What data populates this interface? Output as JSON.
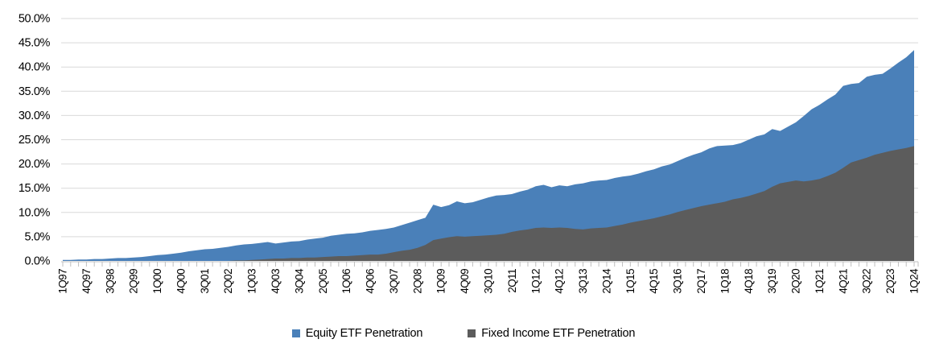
{
  "chart_data": {
    "type": "area",
    "title": "",
    "overlap": true,
    "grid": {
      "horizontal": true,
      "color": "#D9D9D9",
      "axis_color": "#BFBFBF"
    },
    "y_axis": {
      "min": 0,
      "max": 50,
      "step": 5,
      "tick_labels": [
        "0.0%",
        "5.0%",
        "10.0%",
        "15.0%",
        "20.0%",
        "25.0%",
        "30.0%",
        "35.0%",
        "40.0%",
        "45.0%",
        "50.0%"
      ]
    },
    "x_tick_label_step": 3,
    "categories": [
      "1Q97",
      "2Q97",
      "3Q97",
      "4Q97",
      "1Q98",
      "2Q98",
      "3Q98",
      "4Q98",
      "1Q99",
      "2Q99",
      "3Q99",
      "4Q99",
      "1Q00",
      "2Q00",
      "3Q00",
      "4Q00",
      "1Q01",
      "2Q01",
      "3Q01",
      "4Q01",
      "1Q02",
      "2Q02",
      "3Q02",
      "4Q02",
      "1Q03",
      "2Q03",
      "3Q03",
      "4Q03",
      "1Q04",
      "2Q04",
      "3Q04",
      "4Q04",
      "1Q05",
      "2Q05",
      "3Q05",
      "4Q05",
      "1Q06",
      "2Q06",
      "3Q06",
      "4Q06",
      "1Q07",
      "2Q07",
      "3Q07",
      "4Q07",
      "1Q08",
      "2Q08",
      "3Q08",
      "4Q08",
      "1Q09",
      "2Q09",
      "3Q09",
      "4Q09",
      "1Q10",
      "2Q10",
      "3Q10",
      "4Q10",
      "1Q11",
      "2Q11",
      "3Q11",
      "4Q11",
      "1Q12",
      "2Q12",
      "3Q12",
      "4Q12",
      "1Q13",
      "2Q13",
      "3Q13",
      "4Q13",
      "1Q14",
      "2Q14",
      "3Q14",
      "4Q14",
      "1Q15",
      "2Q15",
      "3Q15",
      "4Q15",
      "1Q16",
      "2Q16",
      "3Q16",
      "4Q16",
      "1Q17",
      "2Q17",
      "3Q17",
      "4Q17",
      "1Q18",
      "2Q18",
      "3Q18",
      "4Q18",
      "1Q19",
      "2Q19",
      "3Q19",
      "4Q19",
      "1Q20",
      "2Q20",
      "3Q20",
      "4Q20",
      "1Q21",
      "2Q21",
      "3Q21",
      "4Q21",
      "1Q22",
      "2Q22",
      "3Q22",
      "4Q22",
      "1Q23",
      "2Q23",
      "3Q23",
      "4Q23",
      "1Q24"
    ],
    "series": [
      {
        "name": "Equity ETF Penetration",
        "color": "#4A80B9",
        "values": [
          0.2,
          0.2,
          0.3,
          0.3,
          0.4,
          0.4,
          0.5,
          0.6,
          0.6,
          0.7,
          0.8,
          1.0,
          1.2,
          1.3,
          1.5,
          1.7,
          2.0,
          2.2,
          2.4,
          2.5,
          2.7,
          2.9,
          3.2,
          3.4,
          3.5,
          3.7,
          3.9,
          3.6,
          3.8,
          4.0,
          4.1,
          4.4,
          4.6,
          4.8,
          5.2,
          5.4,
          5.6,
          5.7,
          5.9,
          6.2,
          6.4,
          6.6,
          6.9,
          7.4,
          7.9,
          8.4,
          8.9,
          11.6,
          11.1,
          11.5,
          12.3,
          11.9,
          12.1,
          12.6,
          13.1,
          13.5,
          13.6,
          13.8,
          14.3,
          14.7,
          15.4,
          15.7,
          15.2,
          15.6,
          15.4,
          15.8,
          16.0,
          16.4,
          16.6,
          16.7,
          17.1,
          17.4,
          17.6,
          18.0,
          18.5,
          18.9,
          19.5,
          19.9,
          20.6,
          21.3,
          21.9,
          22.4,
          23.2,
          23.7,
          23.8,
          23.9,
          24.3,
          25.0,
          25.7,
          26.1,
          27.2,
          26.8,
          27.7,
          28.6,
          29.9,
          31.3,
          32.2,
          33.3,
          34.3,
          36.1,
          36.5,
          36.7,
          38.0,
          38.4,
          38.6,
          39.7,
          40.9,
          42.0,
          43.5
        ]
      },
      {
        "name": "Fixed Income ETF Penetration",
        "color": "#5C5C5C",
        "values": [
          0.0,
          0.0,
          0.0,
          0.0,
          0.0,
          0.0,
          0.0,
          0.0,
          0.0,
          0.0,
          0.0,
          0.0,
          0.0,
          0.0,
          0.0,
          0.0,
          0.0,
          0.0,
          0.0,
          0.0,
          0.0,
          0.0,
          0.1,
          0.1,
          0.2,
          0.3,
          0.4,
          0.5,
          0.5,
          0.6,
          0.6,
          0.7,
          0.7,
          0.8,
          0.9,
          1.0,
          1.0,
          1.1,
          1.2,
          1.3,
          1.3,
          1.5,
          1.8,
          2.1,
          2.3,
          2.7,
          3.3,
          4.3,
          4.6,
          4.9,
          5.1,
          5.0,
          5.1,
          5.2,
          5.3,
          5.4,
          5.6,
          6.0,
          6.3,
          6.5,
          6.8,
          6.9,
          6.8,
          6.9,
          6.8,
          6.6,
          6.5,
          6.7,
          6.8,
          6.9,
          7.2,
          7.5,
          7.9,
          8.2,
          8.5,
          8.8,
          9.2,
          9.6,
          10.1,
          10.5,
          10.9,
          11.3,
          11.6,
          11.9,
          12.2,
          12.7,
          13.0,
          13.4,
          13.9,
          14.4,
          15.3,
          16.0,
          16.3,
          16.6,
          16.4,
          16.6,
          16.9,
          17.5,
          18.2,
          19.2,
          20.3,
          20.8,
          21.3,
          21.9,
          22.3,
          22.7,
          23.0,
          23.3,
          23.7
        ]
      }
    ],
    "legend": {
      "position": "bottom"
    }
  }
}
